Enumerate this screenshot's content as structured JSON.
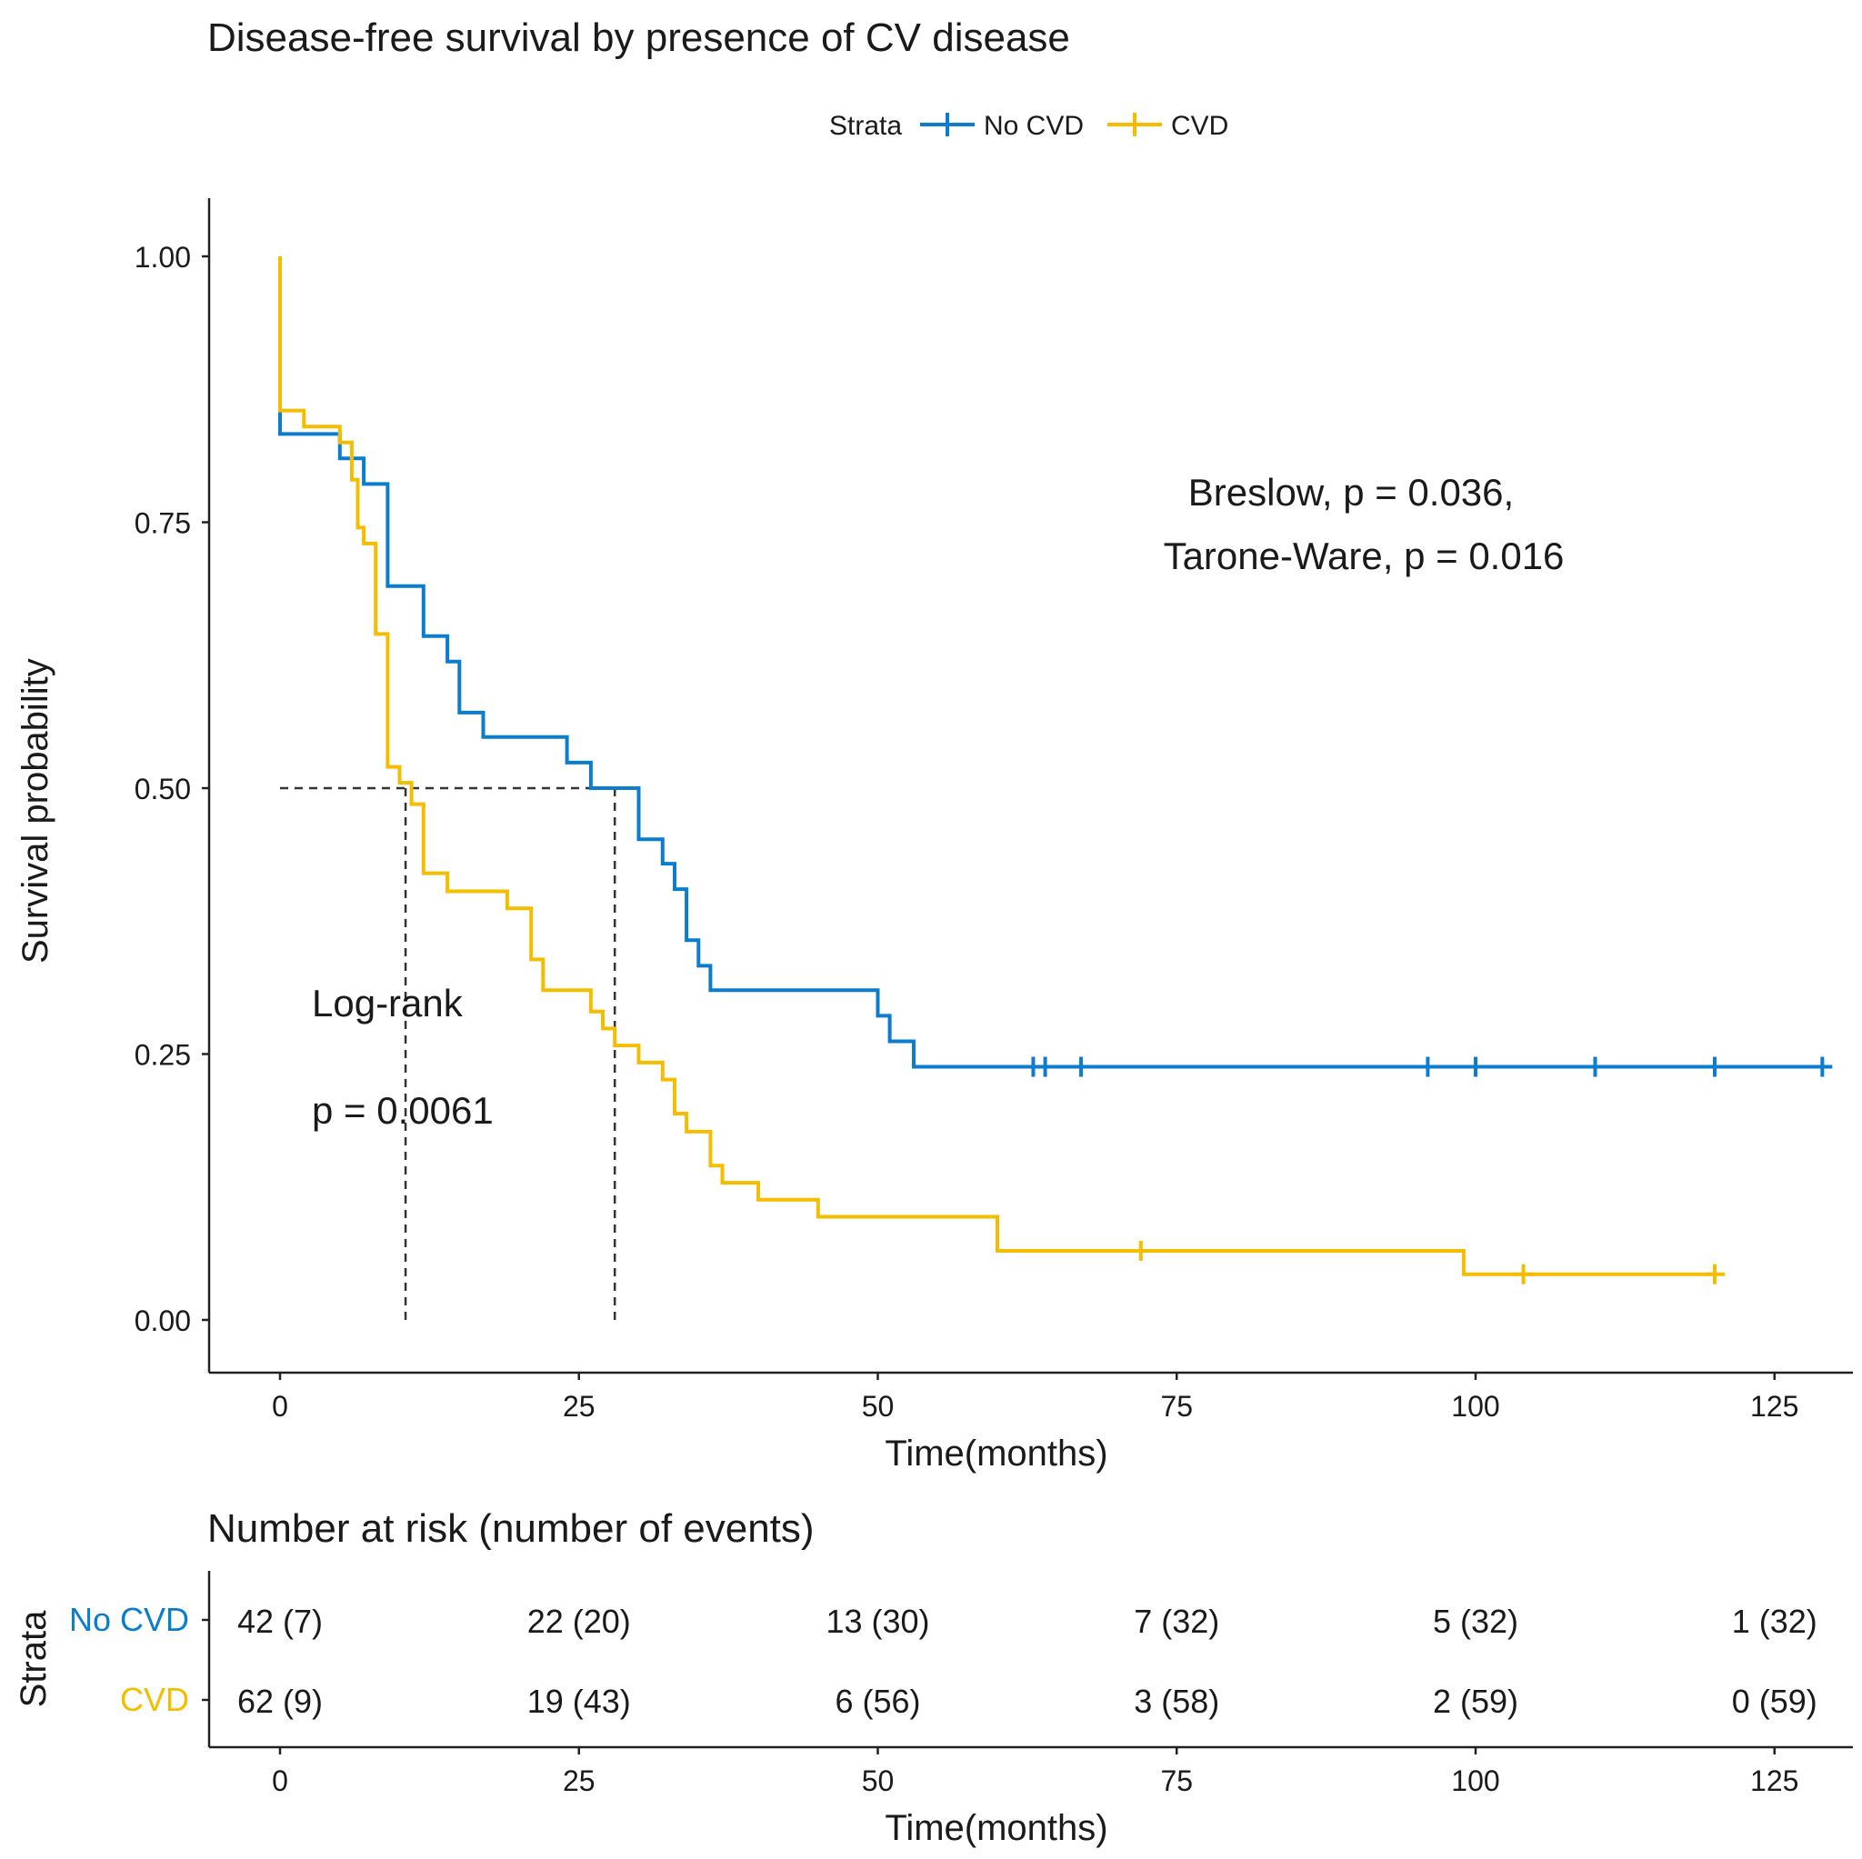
{
  "chart_data": {
    "type": "line",
    "title": "Disease-free survival by presence of CV disease",
    "xlabel": "Time(months)",
    "ylabel": "Survival probability",
    "xlim": [
      -6,
      131
    ],
    "ylim": [
      -0.05,
      1.05
    ],
    "x_ticks": [
      0,
      25,
      50,
      75,
      100,
      125
    ],
    "y_ticks": [
      0,
      0.25,
      0.5,
      0.75,
      1.0
    ],
    "y_tick_labels": [
      "0.00",
      "0.25",
      "0.50",
      "0.75",
      "1.00"
    ],
    "legend": {
      "title": "Strata",
      "position": "top",
      "entries": [
        "No CVD",
        "CVD"
      ]
    },
    "colors": {
      "No CVD": "#0b7dcf",
      "CVD": "#f5bd00",
      "reference": "#333333"
    },
    "series": [
      {
        "name": "No CVD",
        "steps": [
          [
            0,
            0.857
          ],
          [
            0,
            0.833
          ],
          [
            5,
            0.833
          ],
          [
            5,
            0.81
          ],
          [
            7,
            0.81
          ],
          [
            7,
            0.786
          ],
          [
            9,
            0.786
          ],
          [
            9,
            0.69
          ],
          [
            12,
            0.69
          ],
          [
            12,
            0.643
          ],
          [
            14,
            0.643
          ],
          [
            14,
            0.619
          ],
          [
            15,
            0.619
          ],
          [
            15,
            0.571
          ],
          [
            17,
            0.571
          ],
          [
            17,
            0.548
          ],
          [
            24,
            0.548
          ],
          [
            24,
            0.524
          ],
          [
            26,
            0.524
          ],
          [
            26,
            0.5
          ],
          [
            30,
            0.5
          ],
          [
            30,
            0.452
          ],
          [
            32,
            0.452
          ],
          [
            32,
            0.429
          ],
          [
            33,
            0.429
          ],
          [
            33,
            0.405
          ],
          [
            34,
            0.405
          ],
          [
            34,
            0.357
          ],
          [
            35,
            0.357
          ],
          [
            35,
            0.333
          ],
          [
            36,
            0.333
          ],
          [
            36,
            0.31
          ],
          [
            50,
            0.31
          ],
          [
            50,
            0.286
          ],
          [
            51,
            0.286
          ],
          [
            51,
            0.262
          ],
          [
            53,
            0.262
          ],
          [
            53,
            0.238
          ],
          [
            129,
            0.238
          ]
        ],
        "censored": [
          63,
          64,
          67,
          96,
          100,
          110,
          120,
          129
        ],
        "censored_y": 0.238
      },
      {
        "name": "CVD",
        "steps": [
          [
            0,
            1.0
          ],
          [
            0,
            0.855
          ],
          [
            2,
            0.855
          ],
          [
            2,
            0.84
          ],
          [
            5,
            0.84
          ],
          [
            5,
            0.825
          ],
          [
            6,
            0.825
          ],
          [
            6,
            0.79
          ],
          [
            6.5,
            0.79
          ],
          [
            6.5,
            0.745
          ],
          [
            7,
            0.745
          ],
          [
            7,
            0.73
          ],
          [
            8,
            0.73
          ],
          [
            8,
            0.645
          ],
          [
            9,
            0.645
          ],
          [
            9,
            0.52
          ],
          [
            10,
            0.52
          ],
          [
            10,
            0.505
          ],
          [
            11,
            0.505
          ],
          [
            11,
            0.485
          ],
          [
            12,
            0.485
          ],
          [
            12,
            0.42
          ],
          [
            14,
            0.42
          ],
          [
            14,
            0.403
          ],
          [
            19,
            0.403
          ],
          [
            19,
            0.387
          ],
          [
            21,
            0.387
          ],
          [
            21,
            0.339
          ],
          [
            22,
            0.339
          ],
          [
            22,
            0.31
          ],
          [
            26,
            0.31
          ],
          [
            26,
            0.29
          ],
          [
            27,
            0.29
          ],
          [
            27,
            0.274
          ],
          [
            28,
            0.274
          ],
          [
            28,
            0.258
          ],
          [
            30,
            0.258
          ],
          [
            30,
            0.242
          ],
          [
            32,
            0.242
          ],
          [
            32,
            0.226
          ],
          [
            33,
            0.226
          ],
          [
            33,
            0.194
          ],
          [
            34,
            0.194
          ],
          [
            34,
            0.177
          ],
          [
            36,
            0.177
          ],
          [
            36,
            0.145
          ],
          [
            37,
            0.145
          ],
          [
            37,
            0.129
          ],
          [
            40,
            0.129
          ],
          [
            40,
            0.113
          ],
          [
            45,
            0.113
          ],
          [
            45,
            0.097
          ],
          [
            60,
            0.097
          ],
          [
            60,
            0.065
          ],
          [
            99,
            0.065
          ],
          [
            99,
            0.043
          ],
          [
            120,
            0.043
          ]
        ],
        "censored": [
          72,
          104,
          120
        ],
        "censored_y_list": [
          0.065,
          0.043,
          0.043
        ]
      }
    ],
    "medians": [
      {
        "x": 10.5,
        "y": 0.5
      },
      {
        "x": 28,
        "y": 0.5
      }
    ],
    "annotations": {
      "breslow": "Breslow, p = 0.036,",
      "tarone": "Tarone-Ware, p = 0.016",
      "logrank_label": "Log-rank",
      "logrank_p": "p = 0.0061"
    },
    "risk_table": {
      "title": "Number at risk (number of events)",
      "strata_label": "Strata",
      "xlabel": "Time(months)",
      "times": [
        0,
        25,
        50,
        75,
        100,
        125
      ],
      "rows": [
        {
          "name": "No CVD",
          "values": [
            "42 (7)",
            "22 (20)",
            "13 (30)",
            "7 (32)",
            "5 (32)",
            "1 (32)"
          ]
        },
        {
          "name": "CVD",
          "values": [
            "62 (9)",
            "19 (43)",
            "6 (56)",
            "3 (58)",
            "2 (59)",
            "0 (59)"
          ]
        }
      ]
    }
  }
}
